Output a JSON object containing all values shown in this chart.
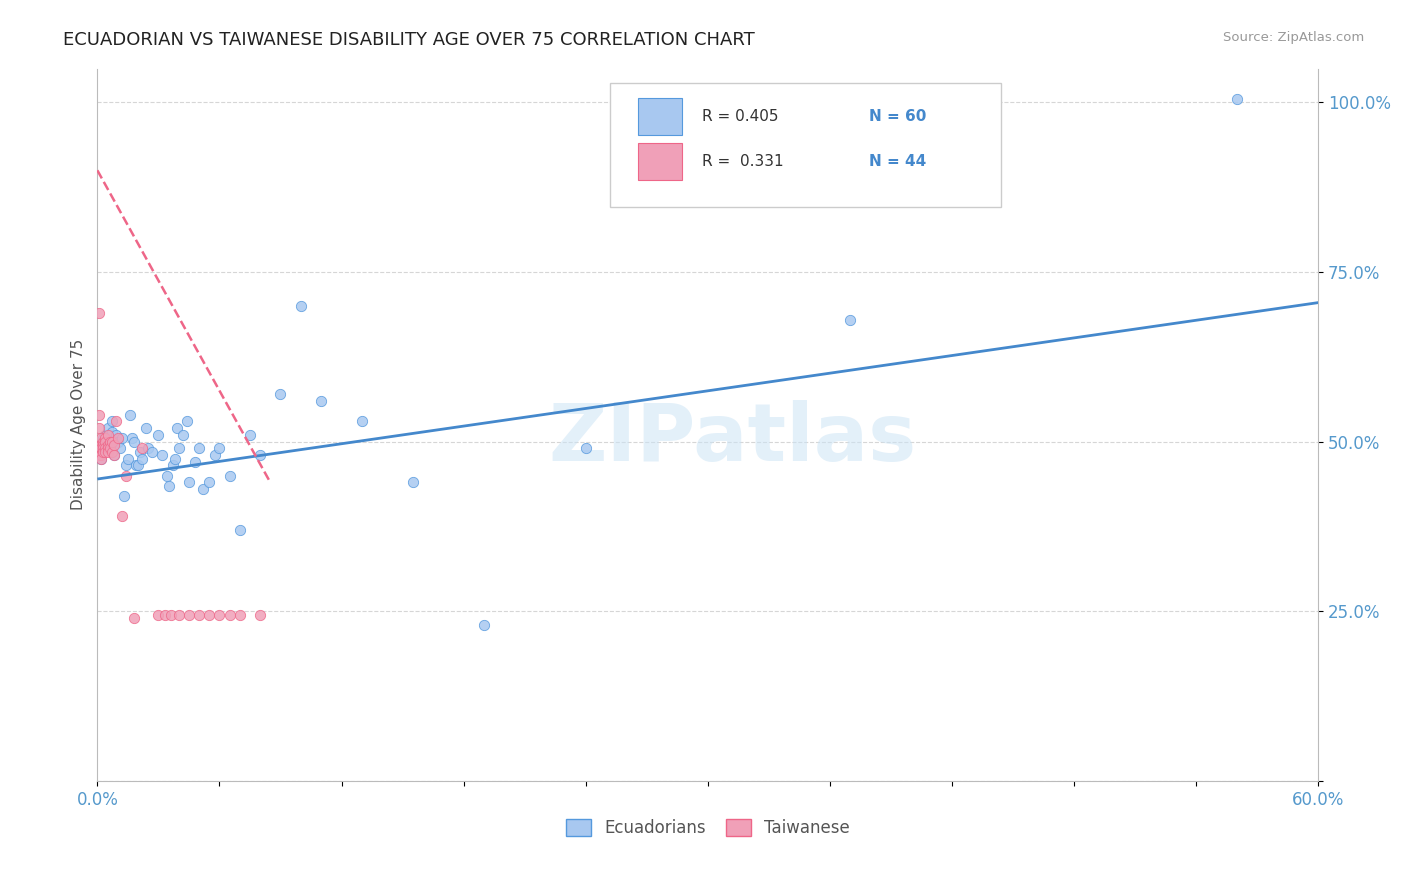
{
  "title": "ECUADORIAN VS TAIWANESE DISABILITY AGE OVER 75 CORRELATION CHART",
  "source": "Source: ZipAtlas.com",
  "ylabel": "Disability Age Over 75",
  "xlim": [
    0.0,
    0.6
  ],
  "ylim": [
    0.0,
    1.05
  ],
  "xticks": [
    0.0,
    0.06,
    0.12,
    0.18,
    0.24,
    0.3,
    0.36,
    0.42,
    0.48,
    0.54,
    0.6
  ],
  "yticks": [
    0.0,
    0.25,
    0.5,
    0.75,
    1.0
  ],
  "yticklabels": [
    "",
    "25.0%",
    "50.0%",
    "75.0%",
    "100.0%"
  ],
  "watermark": "ZIPatlas",
  "color_ecu": "#a8c8f0",
  "color_taiwan": "#f0a0b8",
  "color_ecu_edge": "#5599dd",
  "color_taiwan_edge": "#ee6688",
  "color_ecu_line": "#4488cc",
  "color_taiwan_line": "#ee6688",
  "background": "#ffffff",
  "grid_color": "#cccccc",
  "ecu_x": [
    0.002,
    0.003,
    0.003,
    0.004,
    0.004,
    0.005,
    0.005,
    0.006,
    0.006,
    0.007,
    0.007,
    0.008,
    0.008,
    0.009,
    0.01,
    0.011,
    0.012,
    0.013,
    0.014,
    0.015,
    0.016,
    0.017,
    0.018,
    0.019,
    0.02,
    0.021,
    0.022,
    0.024,
    0.025,
    0.027,
    0.03,
    0.032,
    0.034,
    0.035,
    0.037,
    0.038,
    0.039,
    0.04,
    0.042,
    0.044,
    0.045,
    0.048,
    0.05,
    0.052,
    0.055,
    0.058,
    0.06,
    0.065,
    0.07,
    0.075,
    0.08,
    0.09,
    0.1,
    0.11,
    0.13,
    0.155,
    0.19,
    0.24,
    0.37,
    0.56
  ],
  "ecu_y": [
    0.475,
    0.505,
    0.49,
    0.51,
    0.5,
    0.495,
    0.52,
    0.505,
    0.495,
    0.515,
    0.53,
    0.48,
    0.5,
    0.51,
    0.5,
    0.49,
    0.505,
    0.42,
    0.465,
    0.475,
    0.54,
    0.505,
    0.5,
    0.465,
    0.465,
    0.485,
    0.475,
    0.52,
    0.49,
    0.485,
    0.51,
    0.48,
    0.45,
    0.435,
    0.465,
    0.475,
    0.52,
    0.49,
    0.51,
    0.53,
    0.44,
    0.47,
    0.49,
    0.43,
    0.44,
    0.48,
    0.49,
    0.45,
    0.37,
    0.51,
    0.48,
    0.57,
    0.7,
    0.56,
    0.53,
    0.44,
    0.23,
    0.49,
    0.68,
    1.005
  ],
  "taiwan_x": [
    0.001,
    0.001,
    0.001,
    0.001,
    0.002,
    0.002,
    0.002,
    0.002,
    0.002,
    0.003,
    0.003,
    0.003,
    0.003,
    0.004,
    0.004,
    0.004,
    0.004,
    0.005,
    0.005,
    0.005,
    0.005,
    0.006,
    0.006,
    0.007,
    0.007,
    0.008,
    0.008,
    0.009,
    0.01,
    0.012,
    0.014,
    0.018,
    0.022,
    0.03,
    0.033,
    0.036,
    0.04,
    0.045,
    0.05,
    0.055,
    0.06,
    0.065,
    0.07,
    0.08
  ],
  "taiwan_y": [
    0.69,
    0.54,
    0.52,
    0.48,
    0.505,
    0.495,
    0.49,
    0.48,
    0.475,
    0.5,
    0.495,
    0.49,
    0.485,
    0.505,
    0.5,
    0.49,
    0.485,
    0.51,
    0.495,
    0.49,
    0.485,
    0.5,
    0.49,
    0.5,
    0.485,
    0.495,
    0.48,
    0.53,
    0.505,
    0.39,
    0.45,
    0.24,
    0.49,
    0.245,
    0.245,
    0.245,
    0.245,
    0.245,
    0.245,
    0.245,
    0.245,
    0.245,
    0.245,
    0.245
  ],
  "ecu_line_x0": 0.0,
  "ecu_line_x1": 0.6,
  "ecu_line_y0": 0.445,
  "ecu_line_y1": 0.705,
  "taiwan_line_x0": 0.0,
  "taiwan_line_x1": 0.085,
  "taiwan_line_y0": 0.9,
  "taiwan_line_y1": 0.44
}
